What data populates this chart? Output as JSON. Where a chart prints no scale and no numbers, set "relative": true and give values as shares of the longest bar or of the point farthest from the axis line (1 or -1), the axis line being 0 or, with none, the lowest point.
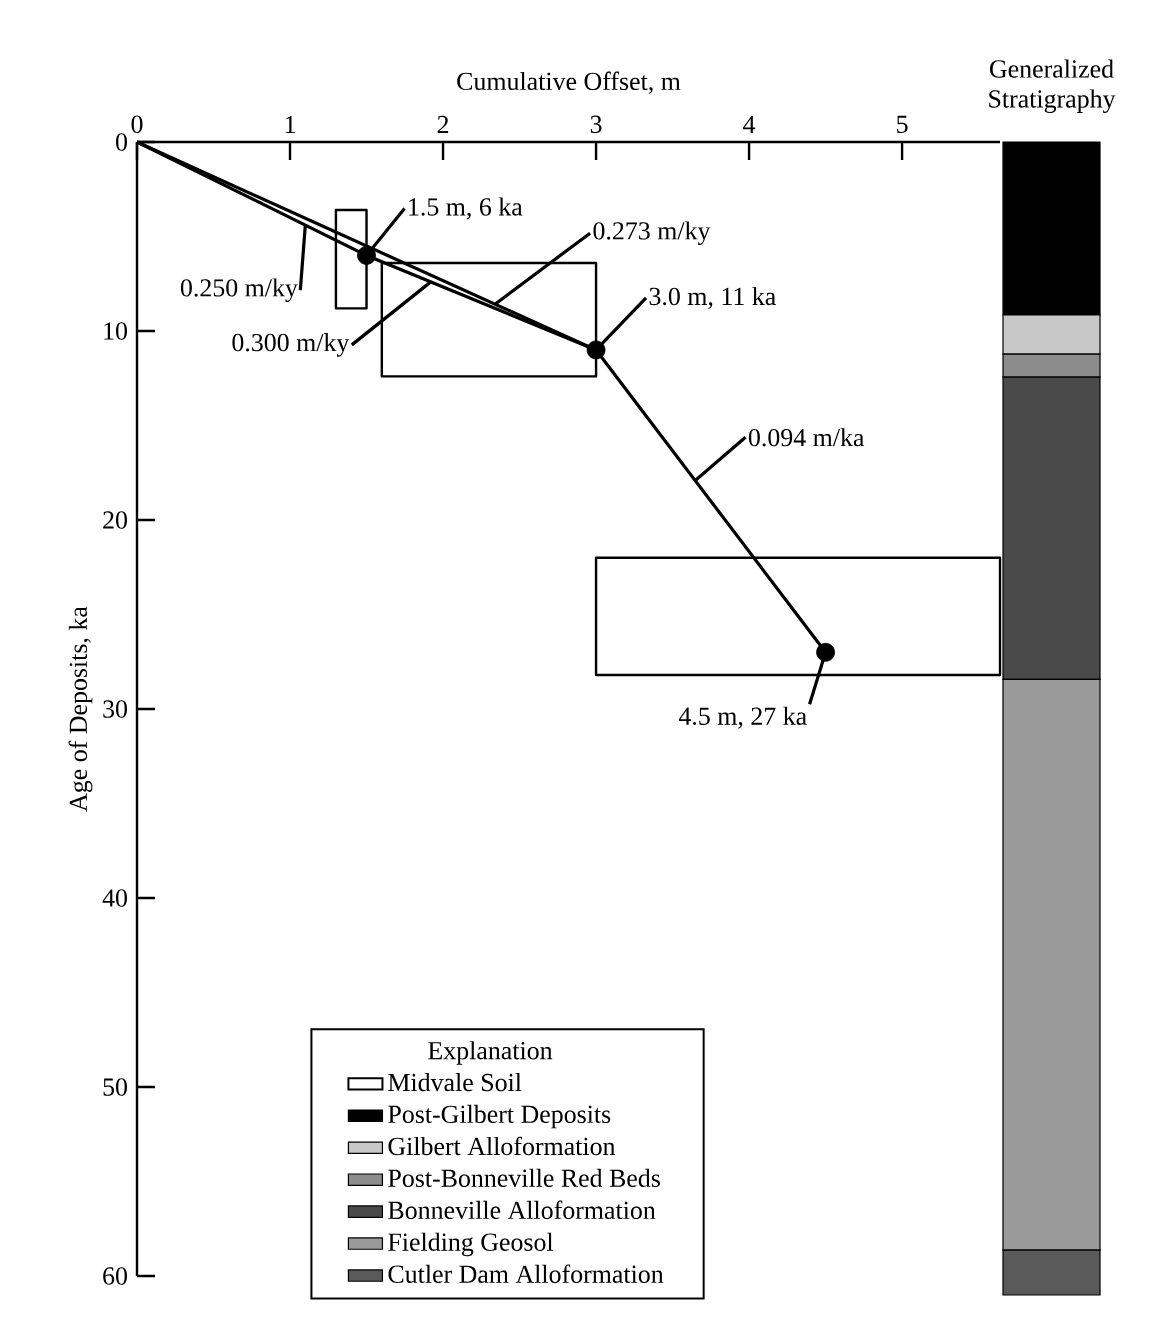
{
  "chart_data": [
    {
      "type": "line",
      "xlabel": "Cumulative Offset, m",
      "ylabel": "Age of Deposits, ka",
      "xlim": [
        0,
        5.64
      ],
      "xticks": [
        0,
        1,
        2,
        3,
        4,
        5
      ],
      "ylim": [
        60,
        0
      ],
      "yticks": [
        0,
        10,
        20,
        30,
        40,
        50,
        60
      ],
      "series": [
        {
          "type": "line",
          "x": [
            0,
            1.5,
            3,
            4.5
          ],
          "values": [
            0,
            6,
            11,
            27
          ],
          "color": "#000000",
          "marker": "none"
        },
        {
          "type": "line",
          "x": [
            0,
            3
          ],
          "values": [
            0,
            11
          ],
          "color": "#000000",
          "marker": "none"
        },
        {
          "type": "line",
          "x": [
            1.3,
            1.5
          ],
          "values": [
            null,
            null
          ],
          "lower": [
            3.6,
            3.6
          ],
          "upper": [
            8.8,
            8.8
          ],
          "color": "#000000",
          "marker": "none"
        },
        {
          "type": "line",
          "x": [
            1.6,
            3.0
          ],
          "values": [
            null,
            null
          ],
          "lower": [
            6.4,
            6.4
          ],
          "upper": [
            12.4,
            12.4
          ],
          "color": "#000000",
          "marker": "none"
        },
        {
          "type": "line",
          "x": [
            3.0,
            5.64
          ],
          "values": [
            null,
            null
          ],
          "lower": [
            22,
            22
          ],
          "upper": [
            28.2,
            28.2
          ],
          "color": "#000000",
          "marker": "none"
        },
        {
          "type": "scatter",
          "x": [
            1.5,
            3,
            4.5
          ],
          "values": [
            6,
            11,
            27
          ],
          "color": "#000000",
          "marker": "circle",
          "value_labels": [
            "1.5 m, 6 ka",
            "3.0 m, 11 ka",
            "4.5 m, 27 ka"
          ]
        }
      ],
      "annotations": [
        {
          "text": "0.250 m/ky",
          "x": 1.1,
          "y": 4.4
        },
        {
          "text": "0.300 m/ky",
          "x": 1.92,
          "y": 7.4
        },
        {
          "text": "0.273 m/ky",
          "x": 2.34,
          "y": 8.58
        },
        {
          "text": "0.094 m/ka",
          "x": 3.65,
          "y": 17.9
        }
      ]
    },
    {
      "type": "bar",
      "stacked": true,
      "title": "Generalized Stratigraphy",
      "categories": [
        null
      ],
      "relative": true,
      "legend": "bottom left",
      "legend_title": "Explanation",
      "series": [
        {
          "name": "Cutler Dam Alloformation",
          "color": "#5a5a5a",
          "values": [
            0.039
          ]
        },
        {
          "name": "Fielding Geosol",
          "color": "#9a9a9a",
          "values": [
            0.495
          ]
        },
        {
          "name": "Bonneville Alloformation",
          "color": "#4a4a4a",
          "values": [
            0.262
          ]
        },
        {
          "name": "Post-Bonneville Red Beds",
          "color": "#8c8c8c",
          "values": [
            0.02
          ]
        },
        {
          "name": "Gilbert Alloformation",
          "color": "#c8c8c8",
          "values": [
            0.034
          ]
        },
        {
          "name": "Post-Gilbert Deposits",
          "color": "#000000",
          "values": [
            0.15
          ]
        },
        {
          "name": "Midvale Soil",
          "color": "#ffffff",
          "values": [
            null
          ]
        }
      ]
    }
  ]
}
